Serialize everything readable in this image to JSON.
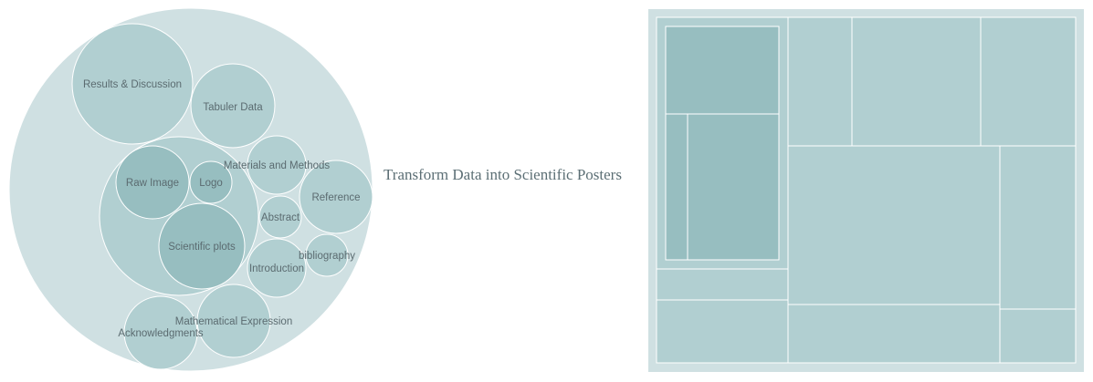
{
  "title": "Transform Data into Scientific Posters",
  "colors": {
    "outer": "#cfe0e2",
    "level1": "#b1cfd1",
    "level2": "#97bec0",
    "stroke": "#ffffff",
    "text": "#5b6b70"
  },
  "bubbles": {
    "results": "Results & Discussion",
    "tabular": "Tabuler Data",
    "materials": "Materials and Methods",
    "reference": "Reference",
    "raw_image": "Raw Image",
    "logo": "Logo",
    "abstract": "Abstract",
    "scientific_plots": "Scientific plots",
    "introduction": "Introduction",
    "bibliography": "bibliography",
    "math": "Mathematical Expression",
    "acknowledgments": "Acknowledgments"
  }
}
